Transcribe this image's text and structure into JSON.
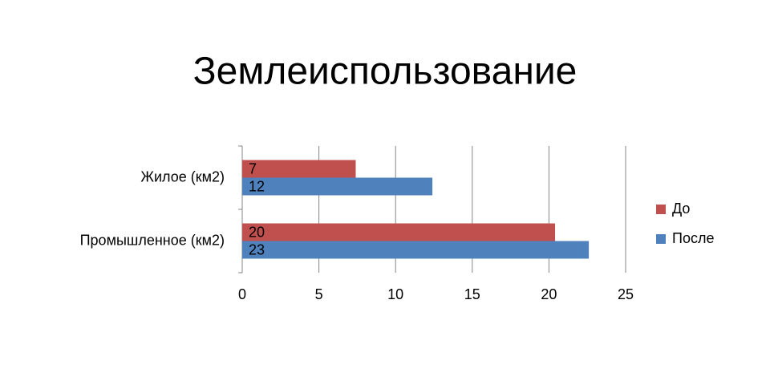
{
  "chart_data": {
    "type": "bar",
    "orientation": "horizontal",
    "title": "Землеиспользование",
    "categories": [
      "Жилое (км2)",
      "Промышленное (км2)"
    ],
    "series": [
      {
        "name": "До",
        "color": "#c0504d",
        "values": [
          7.4,
          20.4
        ],
        "value_labels": [
          "7",
          "20"
        ]
      },
      {
        "name": "После",
        "color": "#4f81bd",
        "values": [
          12.4,
          22.6
        ],
        "value_labels": [
          "12",
          "23"
        ]
      }
    ],
    "xlim": [
      0,
      25
    ],
    "xticks": [
      0,
      5,
      10,
      15,
      20,
      25
    ],
    "grid": true,
    "legend": "right"
  }
}
